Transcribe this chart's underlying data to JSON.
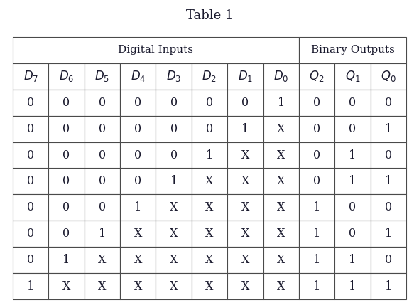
{
  "title": "Table 1",
  "group_headers": [
    "Digital Inputs",
    "Binary Outputs"
  ],
  "group_spans": [
    8,
    3
  ],
  "col_labels": [
    "D_7",
    "D_6",
    "D_5",
    "D_4",
    "D_3",
    "D_2",
    "D_1",
    "D_0",
    "Q_2",
    "Q_1",
    "Q_0"
  ],
  "col_labels_math": [
    "$D_7$",
    "$D_6$",
    "$D_5$",
    "$D_4$",
    "$D_3$",
    "$D_2$",
    "$D_1$",
    "$D_0$",
    "$Q_2$",
    "$Q_1$",
    "$Q_0$"
  ],
  "rows": [
    [
      "0",
      "0",
      "0",
      "0",
      "0",
      "0",
      "0",
      "1",
      "0",
      "0",
      "0"
    ],
    [
      "0",
      "0",
      "0",
      "0",
      "0",
      "0",
      "1",
      "X",
      "0",
      "0",
      "1"
    ],
    [
      "0",
      "0",
      "0",
      "0",
      "0",
      "1",
      "X",
      "X",
      "0",
      "1",
      "0"
    ],
    [
      "0",
      "0",
      "0",
      "0",
      "1",
      "X",
      "X",
      "X",
      "0",
      "1",
      "1"
    ],
    [
      "0",
      "0",
      "0",
      "1",
      "X",
      "X",
      "X",
      "X",
      "1",
      "0",
      "0"
    ],
    [
      "0",
      "0",
      "1",
      "X",
      "X",
      "X",
      "X",
      "X",
      "1",
      "0",
      "1"
    ],
    [
      "0",
      "1",
      "X",
      "X",
      "X",
      "X",
      "X",
      "X",
      "1",
      "1",
      "0"
    ],
    [
      "1",
      "X",
      "X",
      "X",
      "X",
      "X",
      "X",
      "X",
      "1",
      "1",
      "1"
    ]
  ],
  "n_cols": 11,
  "n_input_cols": 8,
  "n_output_cols": 3,
  "bg_color": "#ffffff",
  "border_color": "#4a4a4a",
  "text_color": "#1a1a2e",
  "data_font_size": 11.5,
  "header_font_size": 11,
  "col_header_font_size": 12,
  "title_font_size": 13
}
